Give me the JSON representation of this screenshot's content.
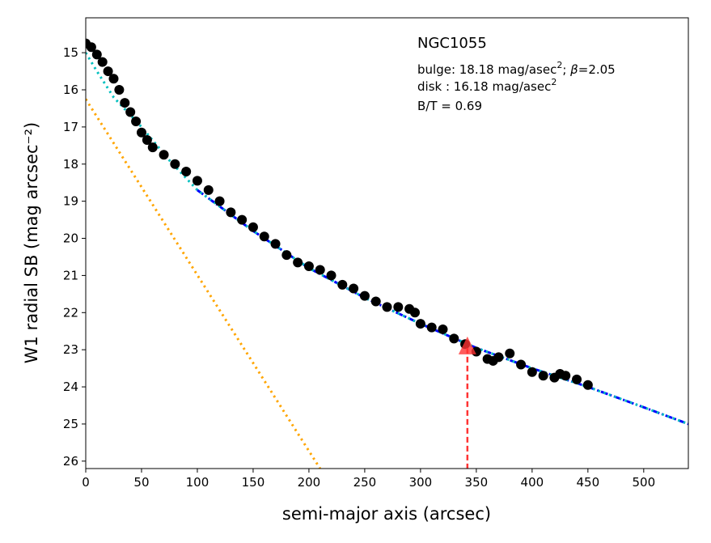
{
  "chart_data": {
    "type": "scatter",
    "xlabel": "semi-major axis (arcsec)",
    "ylabel": "W1 radial SB (mag arcsec⁻²)",
    "annotations": [
      [
        "NGC1055"
      ],
      [
        "bulge: 18.18 mag/asec",
        "2",
        "; ",
        "β",
        "=2.05"
      ],
      [
        "disk  : 16.18 mag/asec",
        "2"
      ],
      [
        "B/T = 0.69"
      ]
    ],
    "xlim": [
      0,
      540
    ],
    "ylim": [
      14.06,
      26.2
    ],
    "invert_y": true,
    "xticks": [
      0,
      50,
      100,
      150,
      200,
      250,
      300,
      350,
      400,
      450,
      500
    ],
    "yticks": [
      15,
      16,
      17,
      18,
      19,
      20,
      21,
      22,
      23,
      24,
      25,
      26
    ],
    "points": {
      "color": "#000000",
      "x": [
        0,
        5,
        10,
        15,
        20,
        25,
        30,
        35,
        40,
        45,
        50,
        55,
        60,
        70,
        80,
        90,
        100,
        110,
        120,
        130,
        140,
        150,
        160,
        170,
        180,
        190,
        200,
        210,
        220,
        230,
        240,
        250,
        260,
        270,
        280,
        290,
        295,
        300,
        310,
        320,
        330,
        340,
        350,
        360,
        365,
        370,
        380,
        390,
        400,
        410,
        420,
        425,
        430,
        440,
        450
      ],
      "values": [
        14.75,
        14.85,
        15.05,
        15.25,
        15.5,
        15.7,
        16.0,
        16.35,
        16.6,
        16.85,
        17.15,
        17.35,
        17.55,
        17.75,
        18.0,
        18.2,
        18.45,
        18.7,
        19.0,
        19.3,
        19.5,
        19.7,
        19.95,
        20.15,
        20.45,
        20.65,
        20.75,
        20.85,
        21.0,
        21.25,
        21.35,
        21.55,
        21.7,
        21.85,
        21.85,
        21.9,
        22.0,
        22.3,
        22.4,
        22.45,
        22.7,
        22.85,
        23.05,
        23.25,
        23.3,
        23.2,
        23.1,
        23.4,
        23.6,
        23.7,
        23.75,
        23.65,
        23.7,
        23.8,
        23.95
      ]
    },
    "model_lines": [
      {
        "color": "#ffa500",
        "style": "dotted",
        "x": [
          0,
          210
        ],
        "values": [
          16.25,
          26.2
        ]
      },
      {
        "color": "#0000ff",
        "style": "dashdot",
        "x": [
          100,
          150,
          200,
          250,
          300,
          350,
          400,
          450,
          500,
          540
        ],
        "values": [
          18.7,
          19.8,
          20.8,
          21.6,
          22.3,
          22.95,
          23.5,
          24.0,
          24.55,
          25.0
        ]
      },
      {
        "color": "#00bfbf",
        "style": "dotted",
        "x": [
          0,
          10,
          25,
          50,
          75,
          100,
          150,
          200,
          250,
          300,
          350,
          400,
          450,
          500,
          540
        ],
        "values": [
          15.0,
          15.5,
          16.2,
          17.0,
          17.9,
          18.7,
          19.8,
          20.8,
          21.6,
          22.3,
          22.95,
          23.5,
          24.0,
          24.55,
          25.0
        ]
      }
    ],
    "marker": {
      "color": "#ff3333",
      "x": 342,
      "y": 22.95
    }
  }
}
